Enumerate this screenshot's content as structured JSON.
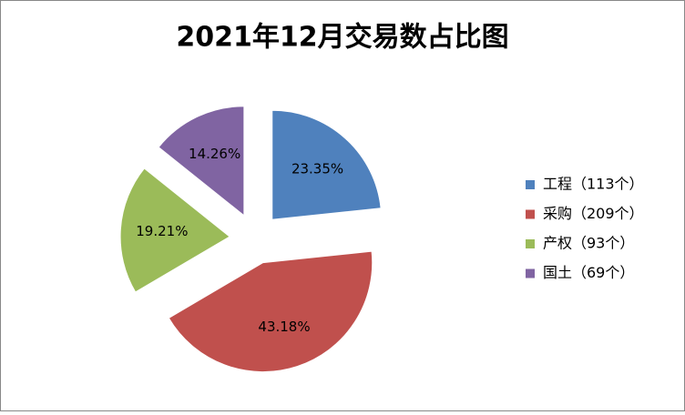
{
  "chart_data": {
    "type": "pie",
    "title": "2021年12月交易数占比图",
    "categories": [
      "工程（113个）",
      "采购（209个）",
      "产权（93个）",
      "国土（69个）"
    ],
    "values": [
      23.35,
      43.18,
      19.21,
      14.26
    ],
    "value_labels": [
      "23.35%",
      "43.18%",
      "19.21%",
      "14.26%"
    ],
    "colors": [
      "#4f81bd",
      "#c0504d",
      "#9bbb59",
      "#8064a2"
    ],
    "exploded": true,
    "legend": "right"
  }
}
